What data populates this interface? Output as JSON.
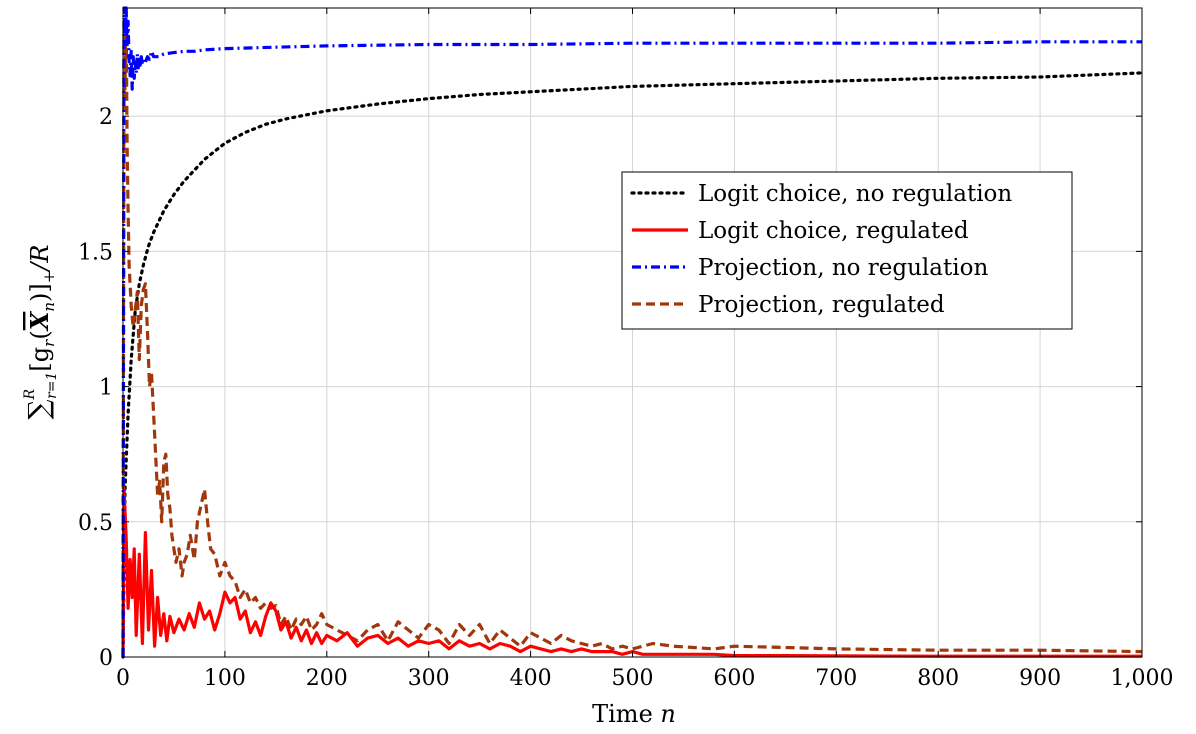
{
  "chart_data": {
    "type": "line",
    "xlabel": "Time n",
    "ylabel": "∑_{r=1}^{R} [g_r(X̄_n)]_+ / R",
    "ylabel_parts": {
      "sum": "∑",
      "sup": "R",
      "sub": "r=1",
      "body": "[g",
      "sub_r": "r",
      "paren_open": "(",
      "xbar": "X",
      "sub_n": "n",
      "close": ")]",
      "plus": "+",
      "tail": "/R"
    },
    "xlabel_parts": {
      "main": "Time ",
      "var": "n"
    },
    "xlim": [
      0,
      1000
    ],
    "ylim": [
      0,
      2.4
    ],
    "x_ticks": [
      0,
      100,
      200,
      300,
      400,
      500,
      600,
      700,
      800,
      900,
      1000
    ],
    "x_tick_labels": [
      "0",
      "100",
      "200",
      "300",
      "400",
      "500",
      "600",
      "700",
      "800",
      "900",
      "1,000"
    ],
    "y_ticks": [
      0,
      0.5,
      1,
      1.5,
      2
    ],
    "y_tick_labels": [
      "0",
      "0.5",
      "1",
      "1.5",
      "2"
    ],
    "grid": true,
    "legend_position": "upper-right-inset",
    "series": [
      {
        "name": "Logit choice, no regulation",
        "color": "#000000",
        "style": "dotted",
        "x": [
          0,
          2,
          5,
          8,
          12,
          16,
          20,
          25,
          30,
          40,
          50,
          60,
          70,
          80,
          90,
          100,
          120,
          140,
          160,
          180,
          200,
          250,
          300,
          350,
          400,
          450,
          500,
          600,
          700,
          800,
          900,
          1000
        ],
        "y": [
          0.0,
          0.62,
          0.9,
          1.1,
          1.28,
          1.38,
          1.45,
          1.52,
          1.57,
          1.65,
          1.71,
          1.76,
          1.8,
          1.84,
          1.87,
          1.9,
          1.94,
          1.97,
          1.99,
          2.005,
          2.02,
          2.045,
          2.065,
          2.08,
          2.09,
          2.1,
          2.11,
          2.12,
          2.13,
          2.14,
          2.145,
          2.16
        ]
      },
      {
        "name": "Logit choice, regulated",
        "color": "#ff0000",
        "style": "solid",
        "x": [
          0,
          1,
          3,
          5,
          7,
          9,
          11,
          13,
          16,
          19,
          22,
          25,
          28,
          31,
          34,
          37,
          40,
          43,
          46,
          50,
          55,
          60,
          65,
          70,
          75,
          80,
          85,
          90,
          95,
          100,
          105,
          110,
          115,
          120,
          125,
          130,
          135,
          140,
          145,
          150,
          155,
          160,
          165,
          170,
          175,
          180,
          185,
          190,
          195,
          200,
          210,
          220,
          230,
          240,
          250,
          260,
          270,
          280,
          290,
          300,
          310,
          320,
          330,
          340,
          350,
          360,
          370,
          380,
          390,
          400,
          410,
          420,
          430,
          440,
          450,
          460,
          470,
          480,
          490,
          500,
          510,
          520,
          540,
          560,
          580,
          600,
          650,
          700,
          800,
          900,
          1000
        ],
        "y": [
          0.0,
          0.62,
          0.45,
          0.18,
          0.36,
          0.22,
          0.4,
          0.08,
          0.38,
          0.05,
          0.46,
          0.1,
          0.32,
          0.04,
          0.22,
          0.08,
          0.16,
          0.06,
          0.15,
          0.09,
          0.14,
          0.1,
          0.16,
          0.11,
          0.2,
          0.14,
          0.17,
          0.1,
          0.16,
          0.24,
          0.2,
          0.22,
          0.14,
          0.17,
          0.09,
          0.13,
          0.08,
          0.15,
          0.2,
          0.17,
          0.1,
          0.13,
          0.07,
          0.11,
          0.06,
          0.1,
          0.05,
          0.09,
          0.05,
          0.08,
          0.06,
          0.09,
          0.04,
          0.07,
          0.08,
          0.05,
          0.07,
          0.04,
          0.06,
          0.05,
          0.06,
          0.03,
          0.06,
          0.04,
          0.05,
          0.03,
          0.05,
          0.04,
          0.02,
          0.04,
          0.03,
          0.02,
          0.03,
          0.02,
          0.03,
          0.02,
          0.02,
          0.02,
          0.01,
          0.02,
          0.01,
          0.01,
          0.01,
          0.01,
          0.01,
          0.005,
          0.005,
          0.004,
          0.003,
          0.003,
          0.003
        ]
      },
      {
        "name": "Projection, no regulation",
        "color": "#0000ff",
        "style": "dash-dot",
        "x": [
          0,
          1,
          2,
          3,
          4,
          5,
          6,
          7,
          8,
          9,
          10,
          11,
          12,
          13,
          14,
          15,
          16,
          17,
          18,
          19,
          20,
          22,
          24,
          26,
          28,
          30,
          35,
          40,
          50,
          60,
          70,
          80,
          100,
          150,
          200,
          300,
          400,
          500,
          600,
          700,
          800,
          900,
          1000
        ],
        "y": [
          0.0,
          2.4,
          2.3,
          2.4,
          2.26,
          2.35,
          2.2,
          2.15,
          2.24,
          2.1,
          2.22,
          2.14,
          2.2,
          2.16,
          2.23,
          2.17,
          2.21,
          2.18,
          2.22,
          2.19,
          2.21,
          2.2,
          2.22,
          2.21,
          2.24,
          2.22,
          2.22,
          2.23,
          2.235,
          2.24,
          2.24,
          2.245,
          2.25,
          2.255,
          2.26,
          2.265,
          2.265,
          2.27,
          2.27,
          2.27,
          2.27,
          2.275,
          2.275
        ]
      },
      {
        "name": "Projection, regulated",
        "color": "#a0380b",
        "style": "dashed",
        "x": [
          0,
          1,
          2,
          3,
          4,
          5,
          6,
          8,
          10,
          12,
          14,
          16,
          18,
          20,
          22,
          24,
          26,
          28,
          30,
          32,
          34,
          36,
          38,
          40,
          42,
          44,
          46,
          48,
          50,
          52,
          55,
          58,
          60,
          63,
          66,
          70,
          73,
          76,
          80,
          83,
          86,
          90,
          95,
          100,
          105,
          110,
          115,
          120,
          125,
          130,
          135,
          140,
          145,
          150,
          155,
          160,
          165,
          170,
          175,
          180,
          185,
          190,
          195,
          200,
          210,
          220,
          230,
          240,
          250,
          260,
          270,
          280,
          290,
          300,
          310,
          320,
          330,
          340,
          350,
          360,
          370,
          380,
          390,
          400,
          410,
          420,
          430,
          440,
          450,
          460,
          470,
          480,
          490,
          500,
          520,
          540,
          560,
          580,
          600,
          650,
          700,
          800,
          900,
          1000
        ],
        "y": [
          0.0,
          2.35,
          2.1,
          2.4,
          1.9,
          1.65,
          1.45,
          1.3,
          1.22,
          1.28,
          1.35,
          1.1,
          1.3,
          1.36,
          1.38,
          1.2,
          1.0,
          1.05,
          0.9,
          0.75,
          0.6,
          0.65,
          0.5,
          0.72,
          0.75,
          0.6,
          0.55,
          0.45,
          0.4,
          0.35,
          0.4,
          0.3,
          0.35,
          0.38,
          0.45,
          0.36,
          0.5,
          0.55,
          0.62,
          0.5,
          0.4,
          0.38,
          0.3,
          0.35,
          0.3,
          0.28,
          0.22,
          0.25,
          0.2,
          0.22,
          0.18,
          0.2,
          0.18,
          0.19,
          0.12,
          0.15,
          0.1,
          0.14,
          0.12,
          0.15,
          0.1,
          0.12,
          0.16,
          0.12,
          0.1,
          0.08,
          0.06,
          0.1,
          0.12,
          0.06,
          0.13,
          0.1,
          0.07,
          0.12,
          0.1,
          0.05,
          0.12,
          0.08,
          0.12,
          0.05,
          0.1,
          0.07,
          0.04,
          0.09,
          0.07,
          0.05,
          0.08,
          0.06,
          0.05,
          0.04,
          0.05,
          0.03,
          0.04,
          0.03,
          0.05,
          0.04,
          0.035,
          0.03,
          0.04,
          0.035,
          0.03,
          0.025,
          0.025,
          0.02
        ]
      }
    ]
  }
}
